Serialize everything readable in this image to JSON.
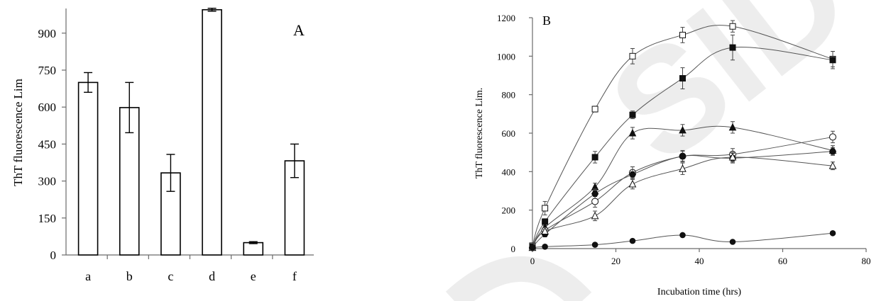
{
  "watermark": {
    "text": "SID",
    "color": "#dedede"
  },
  "chart_data": [
    {
      "type": "bar",
      "panel_label": "A",
      "ylabel": "ThT fluorescence Lim",
      "xlabel": "",
      "ylim": [
        0,
        1000
      ],
      "yticks": [
        0,
        150,
        300,
        450,
        600,
        750,
        900
      ],
      "categories": [
        "a",
        "b",
        "c",
        "d",
        "e",
        "f"
      ],
      "values": [
        700,
        598,
        333,
        995,
        50,
        382
      ],
      "errors": [
        40,
        102,
        75,
        6,
        4,
        68
      ],
      "grid": false
    },
    {
      "type": "line",
      "panel_label": "B",
      "ylabel": "ThT fluorescence Lim.",
      "xlabel": "Incubation time (hrs)",
      "xlim": [
        0,
        80
      ],
      "ylim": [
        0,
        1200
      ],
      "xticks": [
        0,
        20,
        40,
        60,
        80
      ],
      "yticks": [
        0,
        200,
        400,
        600,
        800,
        1000,
        1200
      ],
      "grid": false,
      "series": [
        {
          "marker": "open-square",
          "x": [
            0,
            3,
            15,
            24,
            36,
            48,
            72
          ],
          "y": [
            15,
            210,
            725,
            1000,
            1110,
            1155,
            985
          ],
          "errors": [
            5,
            35,
            15,
            40,
            40,
            30,
            40
          ]
        },
        {
          "marker": "filled-square",
          "x": [
            0,
            3,
            15,
            24,
            36,
            48,
            72
          ],
          "y": [
            10,
            140,
            475,
            695,
            885,
            1045,
            980
          ],
          "errors": [
            5,
            15,
            30,
            20,
            55,
            65,
            45
          ]
        },
        {
          "marker": "filled-triangle",
          "x": [
            0,
            3,
            15,
            24,
            36,
            48,
            72
          ],
          "y": [
            5,
            110,
            320,
            600,
            615,
            630,
            510
          ],
          "errors": [
            5,
            10,
            20,
            30,
            30,
            30,
            25
          ]
        },
        {
          "marker": "open-circle",
          "x": [
            0,
            3,
            15,
            24,
            36,
            48,
            72
          ],
          "y": [
            5,
            95,
            245,
            395,
            480,
            490,
            580
          ],
          "errors": [
            5,
            10,
            30,
            30,
            30,
            30,
            30
          ]
        },
        {
          "marker": "filled-hexagon",
          "x": [
            0,
            3,
            15,
            24,
            36,
            48,
            72
          ],
          "y": [
            5,
            75,
            285,
            385,
            480,
            470,
            505
          ],
          "errors": [
            5,
            10,
            25,
            25,
            25,
            25,
            20
          ]
        },
        {
          "marker": "open-triangle",
          "x": [
            0,
            3,
            15,
            24,
            36,
            48,
            72
          ],
          "y": [
            5,
            90,
            170,
            335,
            415,
            475,
            430
          ],
          "errors": [
            5,
            10,
            25,
            25,
            30,
            25,
            20
          ]
        },
        {
          "marker": "filled-circle",
          "x": [
            0,
            3,
            15,
            24,
            36,
            48,
            72
          ],
          "y": [
            5,
            10,
            20,
            40,
            70,
            35,
            80
          ],
          "errors": [
            0,
            0,
            0,
            0,
            0,
            0,
            0
          ]
        }
      ]
    }
  ]
}
